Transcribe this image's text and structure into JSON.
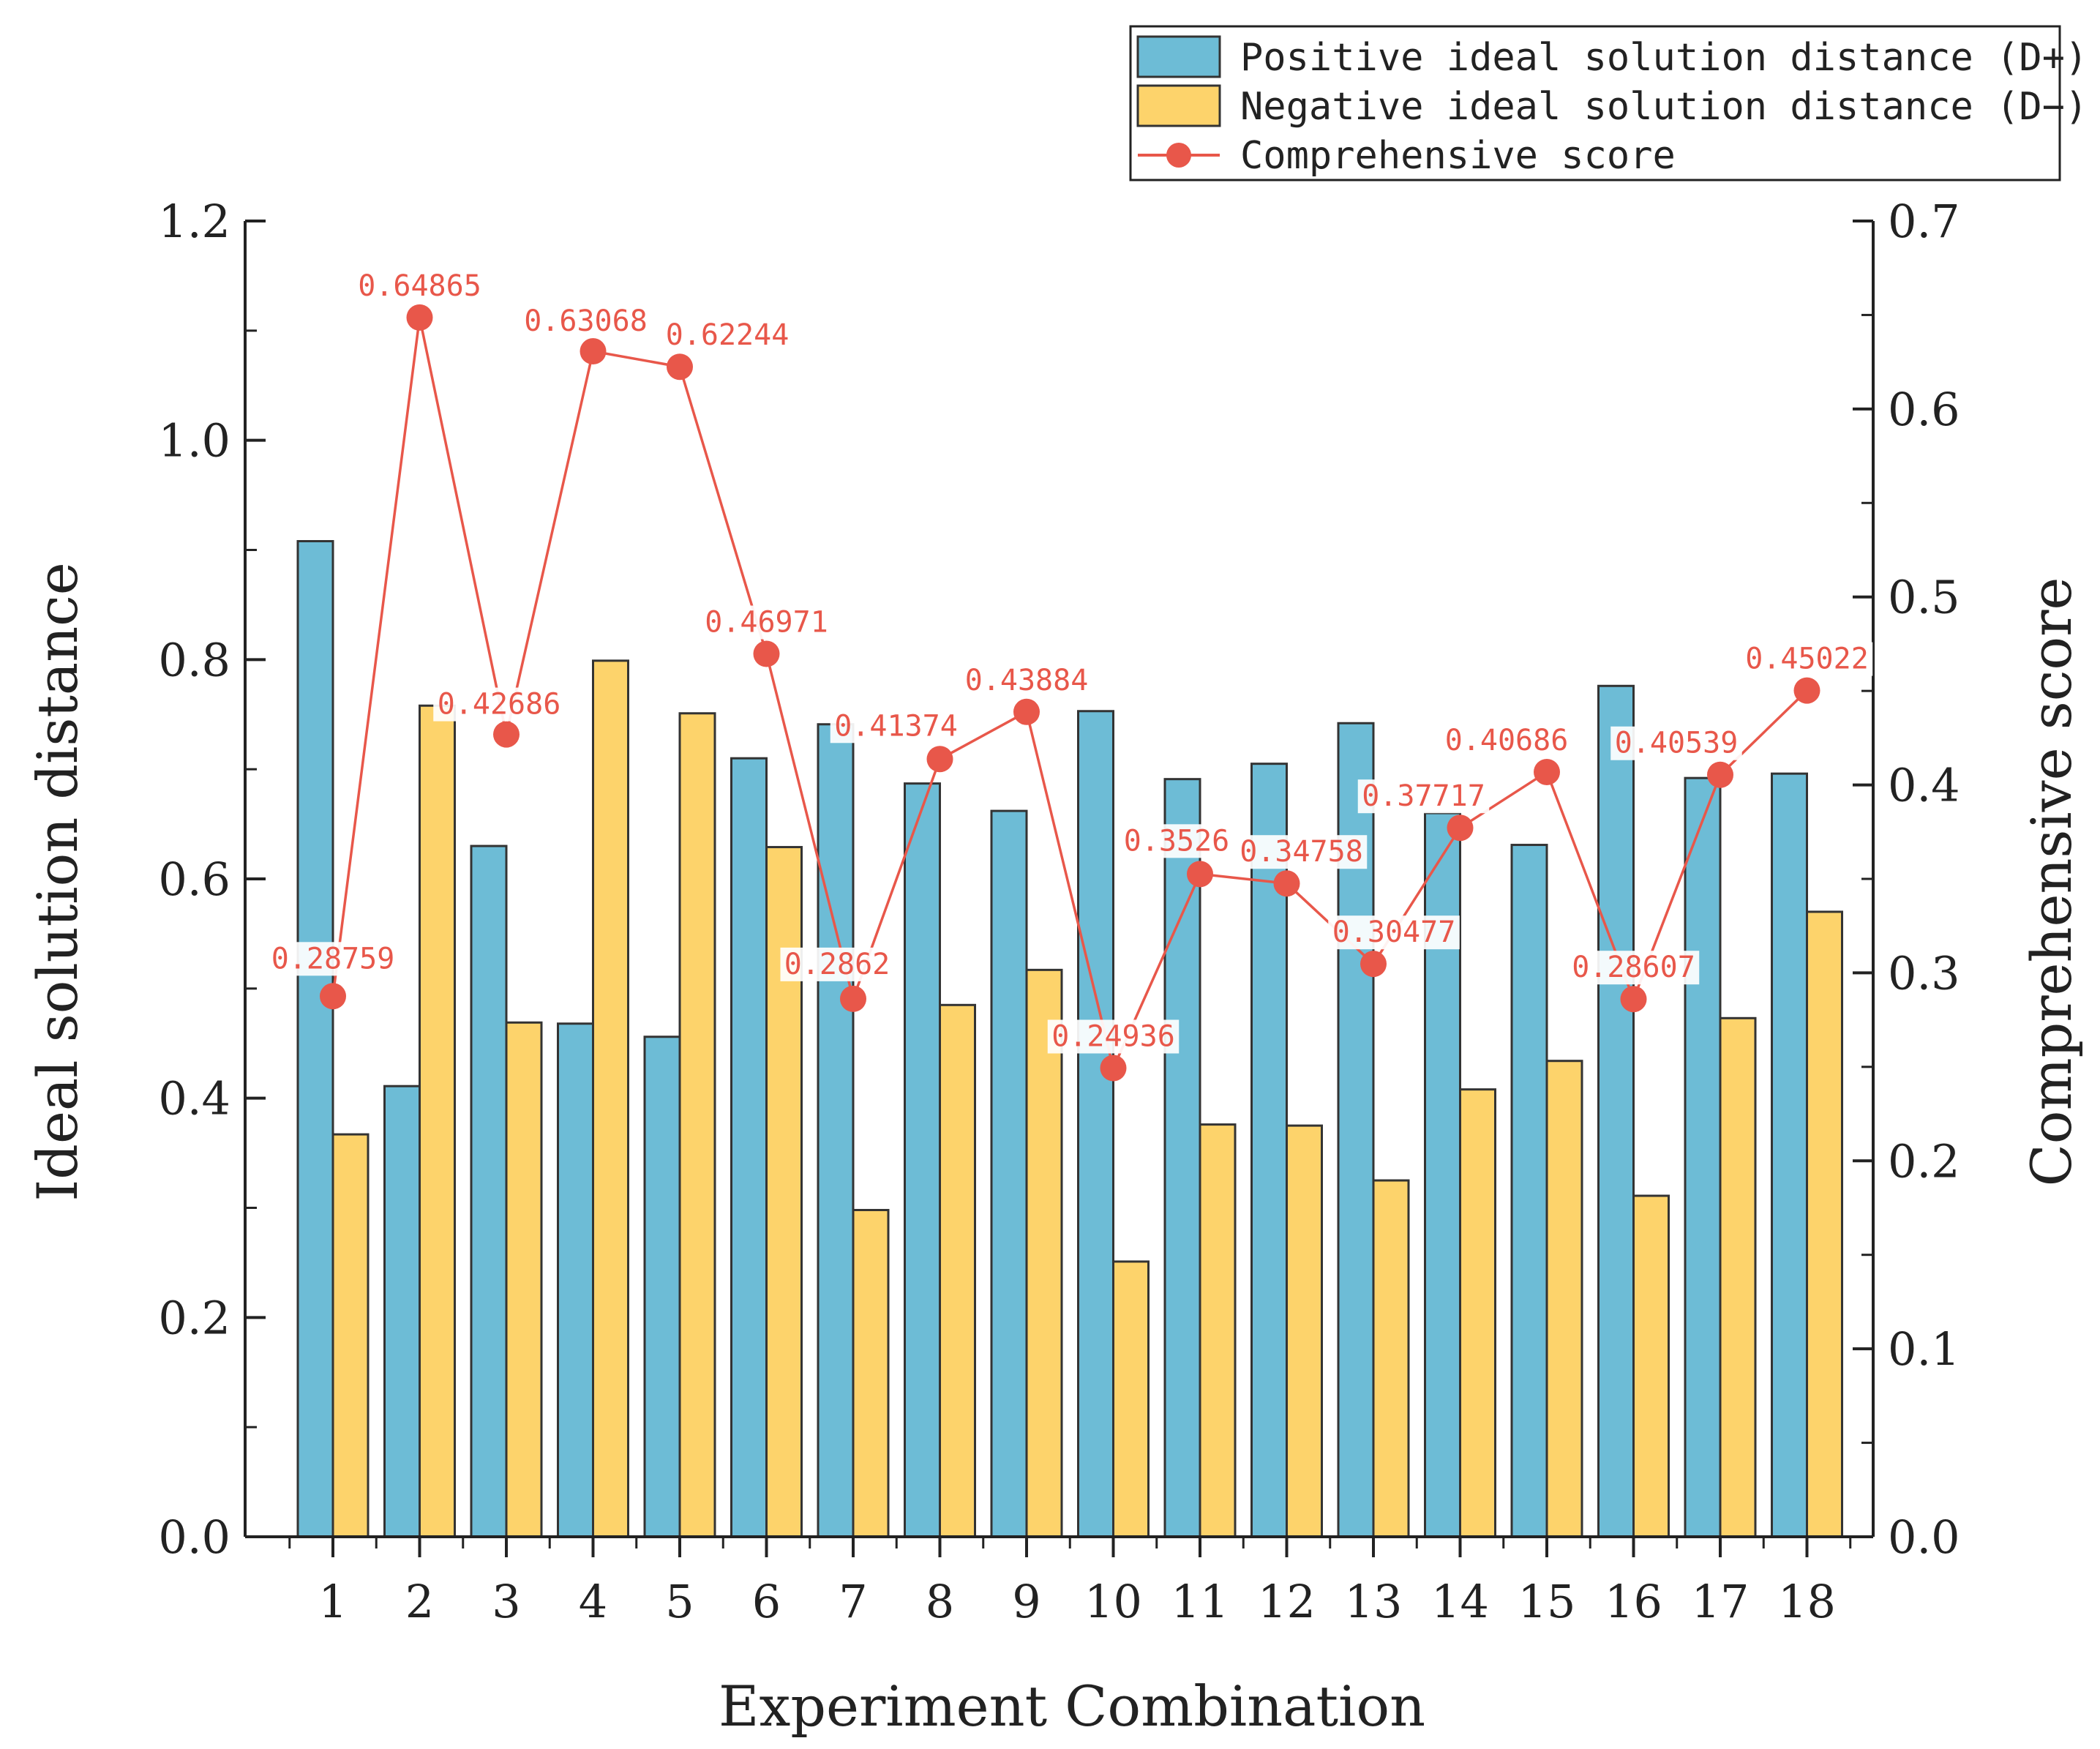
{
  "chart_data": {
    "type": "bar",
    "xlabel": "Experiment Combination",
    "ylabel": "Ideal solution distance",
    "y2label": "Comprehensive score",
    "ylim": [
      0,
      1.2
    ],
    "yticks": [
      "0.0",
      "0.2",
      "0.4",
      "0.6",
      "0.8",
      "1.0",
      "1.2"
    ],
    "y2lim": [
      0,
      0.7
    ],
    "y2ticks": [
      "0.0",
      "0.1",
      "0.2",
      "0.3",
      "0.4",
      "0.5",
      "0.6",
      "0.7"
    ],
    "categories": [
      "1",
      "2",
      "3",
      "4",
      "5",
      "6",
      "7",
      "8",
      "9",
      "10",
      "11",
      "12",
      "13",
      "14",
      "15",
      "16",
      "17",
      "18"
    ],
    "series": [
      {
        "name": "Positive ideal solution distance (D+)",
        "type": "bar",
        "axis": "left",
        "color": "#6dbcd6",
        "values": [
          0.908,
          0.411,
          0.63,
          0.468,
          0.456,
          0.71,
          0.741,
          0.687,
          0.662,
          0.753,
          0.691,
          0.705,
          0.742,
          0.66,
          0.631,
          0.776,
          0.692,
          0.696
        ]
      },
      {
        "name": "Negative ideal solution distance (D−)",
        "type": "bar",
        "axis": "left",
        "color": "#fdd36b",
        "values": [
          0.367,
          0.758,
          0.469,
          0.799,
          0.751,
          0.629,
          0.298,
          0.485,
          0.517,
          0.251,
          0.376,
          0.375,
          0.325,
          0.408,
          0.434,
          0.311,
          0.473,
          0.57
        ]
      },
      {
        "name": "Comprehensive score",
        "type": "line",
        "axis": "right",
        "color": "#e8574a",
        "values": [
          0.28759,
          0.64865,
          0.42686,
          0.63068,
          0.62244,
          0.46971,
          0.2862,
          0.41374,
          0.43884,
          0.24936,
          0.3526,
          0.34758,
          0.30477,
          0.37717,
          0.40686,
          0.28607,
          0.40539,
          0.45022
        ],
        "labels": [
          "0.28759",
          "0.64865",
          "0.42686",
          "0.63068",
          "0.62244",
          "0.46971",
          "0.2862",
          "0.41374",
          "0.43884",
          "0.24936",
          "0.3526",
          "0.34758",
          "0.30477",
          "0.37717",
          "0.40686",
          "0.28607",
          "0.40539",
          "0.45022"
        ]
      }
    ],
    "legend_position": "top-right",
    "grid": false
  }
}
